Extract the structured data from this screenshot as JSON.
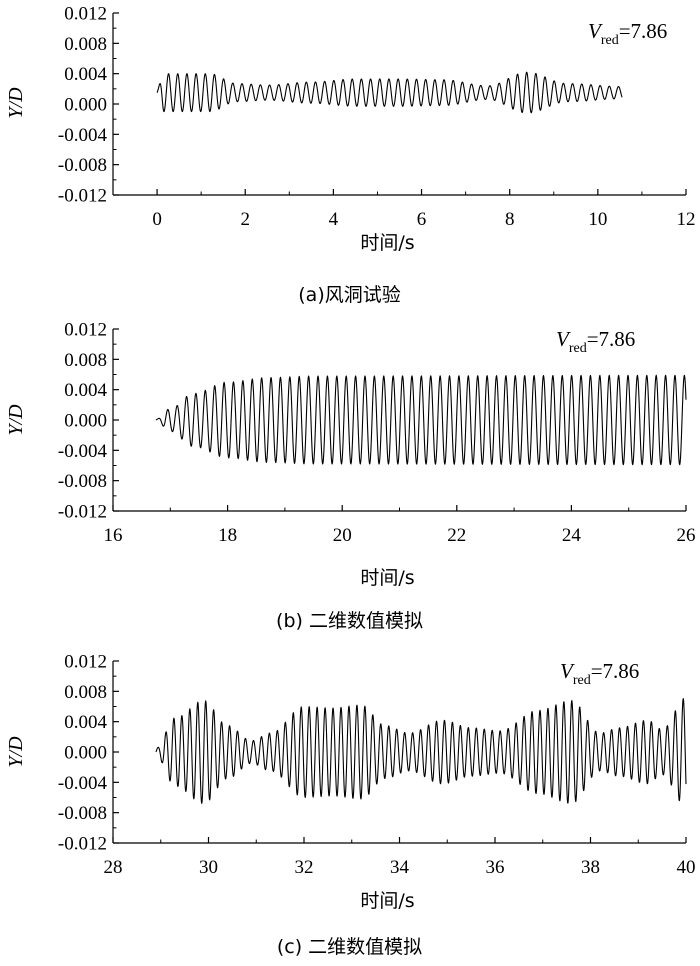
{
  "chart_data": [
    {
      "type": "line",
      "caption": "(a)风洞试验",
      "annotation": {
        "var": "V",
        "sub": "red",
        "value": "=7.86"
      },
      "xlabel": "时间/s",
      "ylabel": "Y/D",
      "xlim": [
        -1,
        12
      ],
      "ylim": [
        -0.012,
        0.012
      ],
      "xticks": [
        0,
        2,
        4,
        6,
        8,
        10,
        12
      ],
      "yticks": [
        0.012,
        0.008,
        0.004,
        0.0,
        -0.004,
        -0.008,
        -0.012
      ],
      "xtick_labels": [
        "0",
        "2",
        "4",
        "6",
        "8",
        "10",
        "12"
      ],
      "ytick_labels": [
        "0.012",
        "0.008",
        "0.004",
        "0.000",
        "-0.004",
        "-0.008",
        "-0.012"
      ],
      "signal": {
        "t_start": 0.0,
        "t_end": 10.55,
        "frequency_hz": 4.8,
        "offset": 0.0015,
        "envelope": [
          [
            0.0,
            0.0005
          ],
          [
            0.15,
            0.0025
          ],
          [
            1.2,
            0.0025
          ],
          [
            1.8,
            0.0012
          ],
          [
            2.5,
            0.001
          ],
          [
            3.5,
            0.0014
          ],
          [
            4.5,
            0.0018
          ],
          [
            5.5,
            0.0018
          ],
          [
            6.5,
            0.0017
          ],
          [
            7.5,
            0.0009
          ],
          [
            8.4,
            0.0027
          ],
          [
            9.3,
            0.0012
          ],
          [
            10.55,
            0.0008
          ]
        ]
      }
    },
    {
      "type": "line",
      "caption": "(b) 二维数值模拟",
      "annotation": {
        "var": "V",
        "sub": "red",
        "value": "=7.86"
      },
      "xlabel": "时间/s",
      "ylabel": "Y/D",
      "xlim": [
        16,
        26
      ],
      "ylim": [
        -0.012,
        0.012
      ],
      "xticks": [
        16,
        18,
        20,
        22,
        24,
        26
      ],
      "yticks": [
        0.012,
        0.008,
        0.004,
        0.0,
        -0.004,
        -0.008,
        -0.012
      ],
      "xtick_labels": [
        "16",
        "18",
        "20",
        "22",
        "24",
        "26"
      ],
      "ytick_labels": [
        "0.012",
        "0.008",
        "0.004",
        "0.000",
        "-0.004",
        "-0.008",
        "-0.012"
      ],
      "signal": {
        "t_start": 16.75,
        "t_end": 26.0,
        "frequency_hz": 6.1,
        "offset": 0.0,
        "envelope": [
          [
            16.75,
            0.0001
          ],
          [
            17.0,
            0.0015
          ],
          [
            17.4,
            0.0035
          ],
          [
            18.0,
            0.005
          ],
          [
            18.7,
            0.0056
          ],
          [
            19.5,
            0.0058
          ],
          [
            26.0,
            0.0059
          ]
        ]
      }
    },
    {
      "type": "line",
      "caption": "(c) 二维数值模拟",
      "annotation": {
        "var": "V",
        "sub": "red",
        "value": "=7.86"
      },
      "xlabel": "时间/s",
      "ylabel": "Y/D",
      "xlim": [
        28,
        40
      ],
      "ylim": [
        -0.012,
        0.012
      ],
      "xticks": [
        28,
        30,
        32,
        34,
        36,
        38,
        40
      ],
      "yticks": [
        0.012,
        0.008,
        0.004,
        0.0,
        -0.004,
        -0.008,
        -0.012
      ],
      "xtick_labels": [
        "28",
        "30",
        "32",
        "34",
        "36",
        "38",
        "40"
      ],
      "ytick_labels": [
        "0.012",
        "0.008",
        "0.004",
        "0.000",
        "-0.004",
        "-0.008",
        "-0.012"
      ],
      "signal": {
        "t_start": 28.9,
        "t_end": 40.0,
        "frequency_hz": 6.0,
        "offset": 0.0,
        "envelope": [
          [
            28.9,
            0.0005
          ],
          [
            29.3,
            0.0045
          ],
          [
            29.9,
            0.0068
          ],
          [
            30.4,
            0.0035
          ],
          [
            30.9,
            0.0015
          ],
          [
            31.3,
            0.0025
          ],
          [
            32.0,
            0.006
          ],
          [
            32.6,
            0.0058
          ],
          [
            33.2,
            0.0062
          ],
          [
            33.7,
            0.0035
          ],
          [
            34.2,
            0.0025
          ],
          [
            34.9,
            0.0042
          ],
          [
            35.5,
            0.0032
          ],
          [
            36.1,
            0.0028
          ],
          [
            36.9,
            0.0055
          ],
          [
            37.6,
            0.0068
          ],
          [
            38.2,
            0.0025
          ],
          [
            38.6,
            0.0032
          ],
          [
            39.2,
            0.0042
          ],
          [
            39.5,
            0.003
          ],
          [
            40.0,
            0.0072
          ]
        ]
      }
    }
  ]
}
